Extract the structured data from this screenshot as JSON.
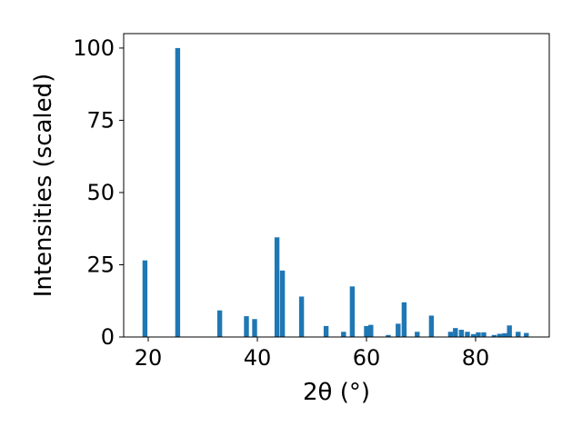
{
  "chart_data": {
    "type": "bar",
    "xlabel": "2θ (°)",
    "ylabel": "Intensities (scaled)",
    "xlim": [
      15.5,
      93.5
    ],
    "ylim": [
      0,
      105
    ],
    "xticks": [
      20,
      40,
      60,
      80
    ],
    "yticks": [
      0,
      25,
      50,
      75,
      100
    ],
    "bar_width": 0.9,
    "color": "#1f77b4",
    "grid": false,
    "x": [
      19.4,
      25.4,
      33.1,
      38.0,
      39.5,
      43.6,
      44.6,
      48.1,
      52.6,
      55.8,
      57.4,
      60.0,
      60.8,
      64.0,
      65.8,
      66.9,
      69.3,
      71.9,
      75.4,
      76.3,
      77.4,
      78.5,
      79.6,
      80.5,
      81.5,
      83.4,
      84.4,
      85.3,
      86.2,
      87.8,
      89.3
    ],
    "values": [
      26.5,
      100,
      9.2,
      7.2,
      6.2,
      34.5,
      23.0,
      14.0,
      3.8,
      1.8,
      17.5,
      3.8,
      4.2,
      0.7,
      4.6,
      12.0,
      1.8,
      7.4,
      1.8,
      3.1,
      2.5,
      1.8,
      1.0,
      1.6,
      1.6,
      0.7,
      1.1,
      1.3,
      4.0,
      1.8,
      1.4
    ]
  }
}
